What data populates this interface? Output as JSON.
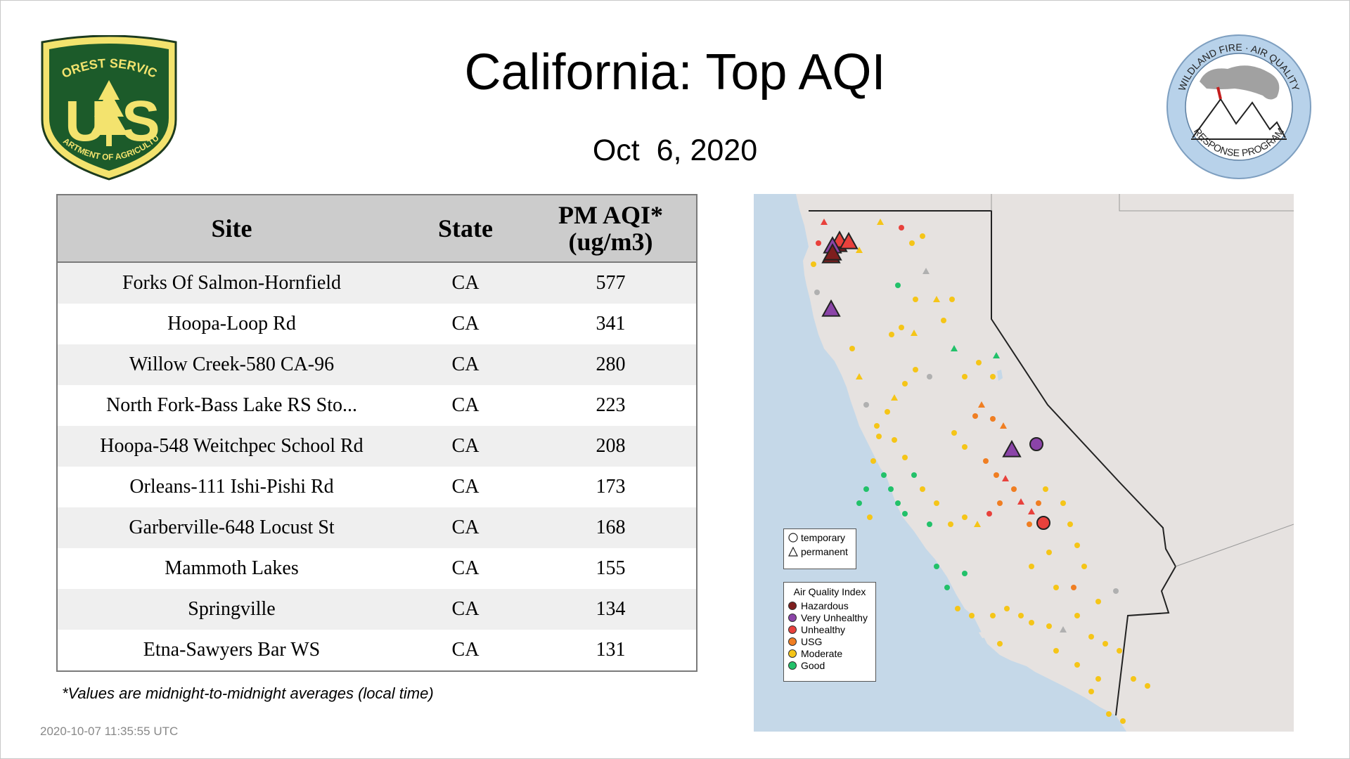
{
  "title": "California: Top AQI",
  "date": "Oct  6, 2020",
  "logos": {
    "forest_service_top": "FOREST SERVICE",
    "forest_service_letters": "US",
    "forest_service_bottom": "DEPARTMENT OF AGRICULTURE",
    "wildland_top": "WILDLAND FIRE · AIR QUALITY",
    "wildland_bottom": "RESPONSE PROGRAM"
  },
  "table": {
    "headers": {
      "site": "Site",
      "state": "State",
      "aqi_line1": "PM AQI*",
      "aqi_line2": "(ug/m3)"
    },
    "rows": [
      {
        "site": "Forks Of Salmon-Hornfield",
        "state": "CA",
        "aqi": "577"
      },
      {
        "site": "Hoopa-Loop Rd",
        "state": "CA",
        "aqi": "341"
      },
      {
        "site": "Willow Creek-580 CA-96",
        "state": "CA",
        "aqi": "280"
      },
      {
        "site": "North Fork-Bass Lake RS Sto...",
        "state": "CA",
        "aqi": "223"
      },
      {
        "site": "Hoopa-548 Weitchpec School Rd",
        "state": "CA",
        "aqi": "208"
      },
      {
        "site": "Orleans-111 Ishi-Pishi Rd",
        "state": "CA",
        "aqi": "173"
      },
      {
        "site": "Garberville-648 Locust St",
        "state": "CA",
        "aqi": "168"
      },
      {
        "site": "Mammoth Lakes",
        "state": "CA",
        "aqi": "155"
      },
      {
        "site": "Springville",
        "state": "CA",
        "aqi": "134"
      },
      {
        "site": "Etna-Sawyers Bar WS",
        "state": "CA",
        "aqi": "131"
      }
    ]
  },
  "footnote": "*Values are midnight-to-midnight averages (local time)",
  "timestamp": "2020-10-07 11:35:55 UTC",
  "legend_shape": {
    "temporary": "temporary",
    "permanent": "permanent"
  },
  "legend_aqi": {
    "title": "Air Quality Index",
    "items": [
      {
        "label": "Hazardous",
        "color": "#7e1e1e"
      },
      {
        "label": "Very Unhealthy",
        "color": "#8b44a8"
      },
      {
        "label": "Unhealthy",
        "color": "#e8413c"
      },
      {
        "label": "USG",
        "color": "#f07e22"
      },
      {
        "label": "Moderate",
        "color": "#f5c518"
      },
      {
        "label": "Good",
        "color": "#22c16a"
      }
    ]
  },
  "colors": {
    "hazardous": "#7e1e1e",
    "very_unhealthy": "#8b44a8",
    "unhealthy": "#e8413c",
    "usg": "#f07e22",
    "moderate": "#f5c518",
    "good": "#22c16a",
    "missing": "#b0b0b0",
    "ocean": "#c5d8e8",
    "land": "#e6e2e0",
    "fs_green": "#1c5b2a",
    "fs_gold": "#f3e36e"
  }
}
